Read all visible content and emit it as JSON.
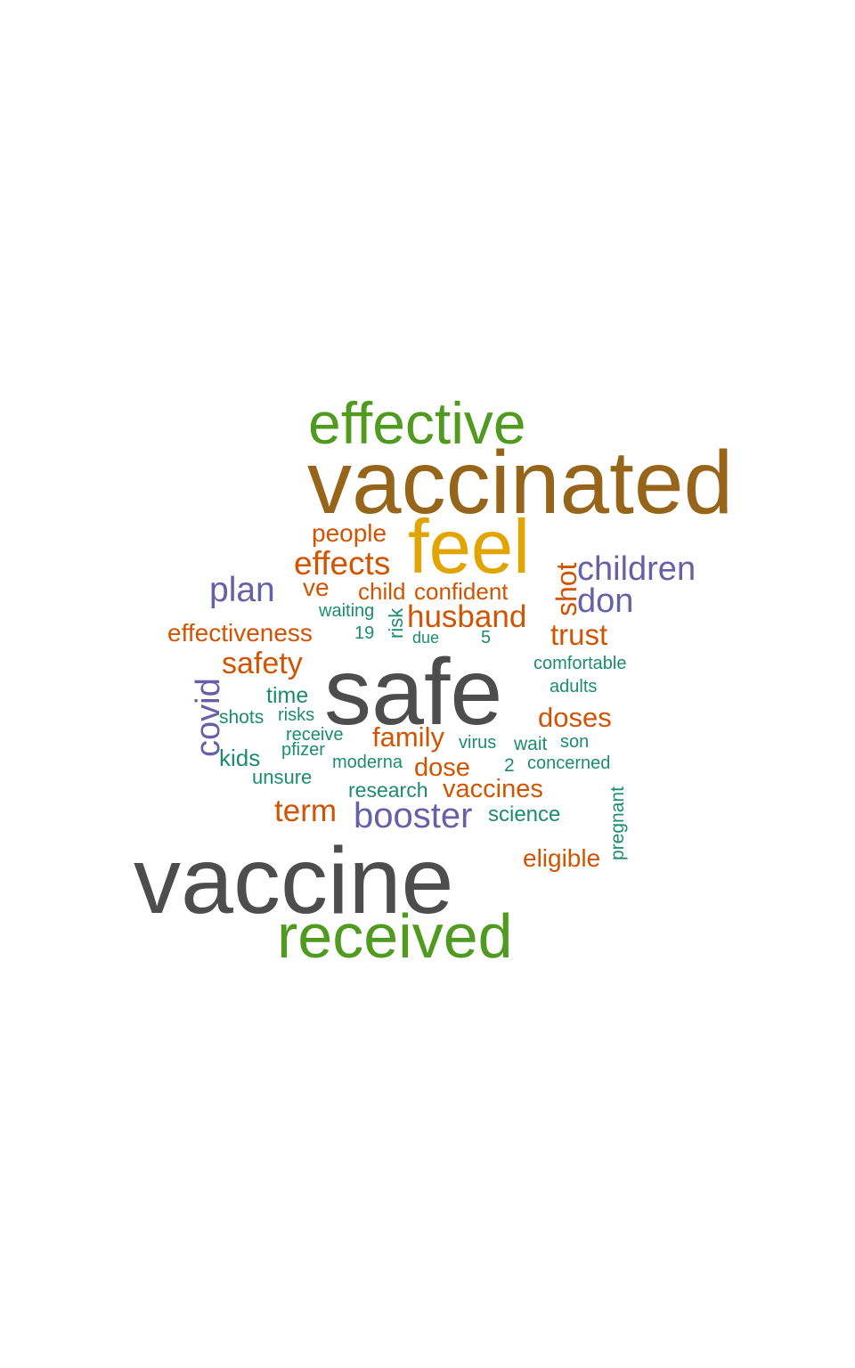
{
  "colors": {
    "gray": "#4d4d4d",
    "brown": "#97651a",
    "green": "#4f9a1f",
    "gold": "#e1a400",
    "orange": "#d15400",
    "purple": "#6660a9",
    "teal": "#1b8d6e"
  },
  "words": [
    {
      "text": "vaccine",
      "color": "gray",
      "rotated": false
    },
    {
      "text": "safe",
      "color": "gray",
      "rotated": false
    },
    {
      "text": "vaccinated",
      "color": "brown",
      "rotated": false
    },
    {
      "text": "effective",
      "color": "green",
      "rotated": false
    },
    {
      "text": "received",
      "color": "green",
      "rotated": false
    },
    {
      "text": "feel",
      "color": "gold",
      "rotated": false
    },
    {
      "text": "people",
      "color": "orange",
      "rotated": false
    },
    {
      "text": "effects",
      "color": "orange",
      "rotated": false
    },
    {
      "text": "children",
      "color": "purple",
      "rotated": false
    },
    {
      "text": "shot",
      "color": "orange",
      "rotated": true
    },
    {
      "text": "plan",
      "color": "purple",
      "rotated": false
    },
    {
      "text": "ve",
      "color": "orange",
      "rotated": false
    },
    {
      "text": "child",
      "color": "orange",
      "rotated": false
    },
    {
      "text": "confident",
      "color": "orange",
      "rotated": false
    },
    {
      "text": "don",
      "color": "purple",
      "rotated": false
    },
    {
      "text": "waiting",
      "color": "teal",
      "rotated": false
    },
    {
      "text": "risk",
      "color": "teal",
      "rotated": true
    },
    {
      "text": "husband",
      "color": "orange",
      "rotated": false
    },
    {
      "text": "effectiveness",
      "color": "orange",
      "rotated": false
    },
    {
      "text": "19",
      "color": "teal",
      "rotated": false
    },
    {
      "text": "due",
      "color": "teal",
      "rotated": false
    },
    {
      "text": "5",
      "color": "teal",
      "rotated": false
    },
    {
      "text": "trust",
      "color": "orange",
      "rotated": false
    },
    {
      "text": "safety",
      "color": "orange",
      "rotated": false
    },
    {
      "text": "comfortable",
      "color": "teal",
      "rotated": false
    },
    {
      "text": "covid",
      "color": "purple",
      "rotated": true
    },
    {
      "text": "adults",
      "color": "teal",
      "rotated": false
    },
    {
      "text": "time",
      "color": "teal",
      "rotated": false
    },
    {
      "text": "shots",
      "color": "teal",
      "rotated": false
    },
    {
      "text": "risks",
      "color": "teal",
      "rotated": false
    },
    {
      "text": "doses",
      "color": "orange",
      "rotated": false
    },
    {
      "text": "receive",
      "color": "teal",
      "rotated": false
    },
    {
      "text": "family",
      "color": "orange",
      "rotated": false
    },
    {
      "text": "virus",
      "color": "teal",
      "rotated": false
    },
    {
      "text": "wait",
      "color": "teal",
      "rotated": false
    },
    {
      "text": "son",
      "color": "teal",
      "rotated": false
    },
    {
      "text": "pfizer",
      "color": "teal",
      "rotated": false
    },
    {
      "text": "kids",
      "color": "teal",
      "rotated": false
    },
    {
      "text": "moderna",
      "color": "teal",
      "rotated": false
    },
    {
      "text": "dose",
      "color": "orange",
      "rotated": false
    },
    {
      "text": "2",
      "color": "teal",
      "rotated": false
    },
    {
      "text": "concerned",
      "color": "teal",
      "rotated": false
    },
    {
      "text": "unsure",
      "color": "teal",
      "rotated": false
    },
    {
      "text": "research",
      "color": "teal",
      "rotated": false
    },
    {
      "text": "vaccines",
      "color": "orange",
      "rotated": false
    },
    {
      "text": "pregnant",
      "color": "teal",
      "rotated": true
    },
    {
      "text": "term",
      "color": "orange",
      "rotated": false
    },
    {
      "text": "booster",
      "color": "purple",
      "rotated": false
    },
    {
      "text": "science",
      "color": "teal",
      "rotated": false
    },
    {
      "text": "eligible",
      "color": "orange",
      "rotated": false
    }
  ]
}
